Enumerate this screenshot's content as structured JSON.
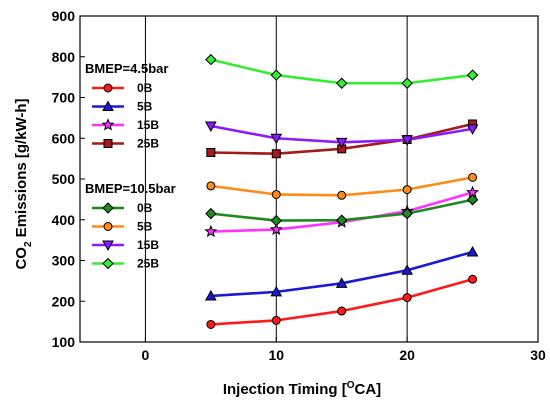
{
  "chart_data": {
    "type": "line",
    "xlabel": "Injection Timing [°CA]",
    "ylabel": "CO₂ Emissions [g/kW-h]",
    "xlim": [
      -5,
      30
    ],
    "ylim": [
      100,
      900
    ],
    "xticks": [
      0,
      10,
      20,
      30
    ],
    "yticks": [
      100,
      200,
      300,
      400,
      500,
      600,
      700,
      800,
      900
    ],
    "grid": "vertical lines at x ticks",
    "x": [
      5,
      10,
      15,
      20,
      25
    ],
    "legend_groups": [
      {
        "heading": "BMEP=4.5bar",
        "entries": [
          {
            "label": "0B",
            "series": 0
          },
          {
            "label": "5B",
            "series": 1
          },
          {
            "label": "15B",
            "series": 2
          },
          {
            "label": "25B",
            "series": 3
          }
        ]
      },
      {
        "heading": "BMEP=10.5bar",
        "entries": [
          {
            "label": "0B",
            "series": 4
          },
          {
            "label": "5B",
            "series": 5
          },
          {
            "label": "15B",
            "series": 6
          },
          {
            "label": "25B",
            "series": 7
          }
        ]
      }
    ],
    "series": [
      {
        "color": "#ff1a1a",
        "marker": "circle",
        "values": [
          143,
          153,
          176,
          209,
          254
        ]
      },
      {
        "color": "#1a1ad6",
        "marker": "triangle-up",
        "values": [
          213,
          223,
          244,
          276,
          321
        ]
      },
      {
        "color": "#ff33ff",
        "marker": "star",
        "values": [
          371,
          376,
          394,
          421,
          467
        ]
      },
      {
        "color": "#a01c1c",
        "marker": "square",
        "values": [
          565,
          562,
          574,
          597,
          635
        ]
      },
      {
        "color": "#1f8a1f",
        "marker": "diamond",
        "values": [
          415,
          398,
          399,
          415,
          449
        ]
      },
      {
        "color": "#ff8c1a",
        "marker": "circle",
        "values": [
          483,
          462,
          460,
          474,
          504
        ]
      },
      {
        "color": "#8c1aff",
        "marker": "triangle-down",
        "values": [
          630,
          600,
          590,
          596,
          623
        ]
      },
      {
        "color": "#33ee33",
        "marker": "diamond",
        "values": [
          793,
          755,
          735,
          735,
          755
        ]
      }
    ]
  }
}
